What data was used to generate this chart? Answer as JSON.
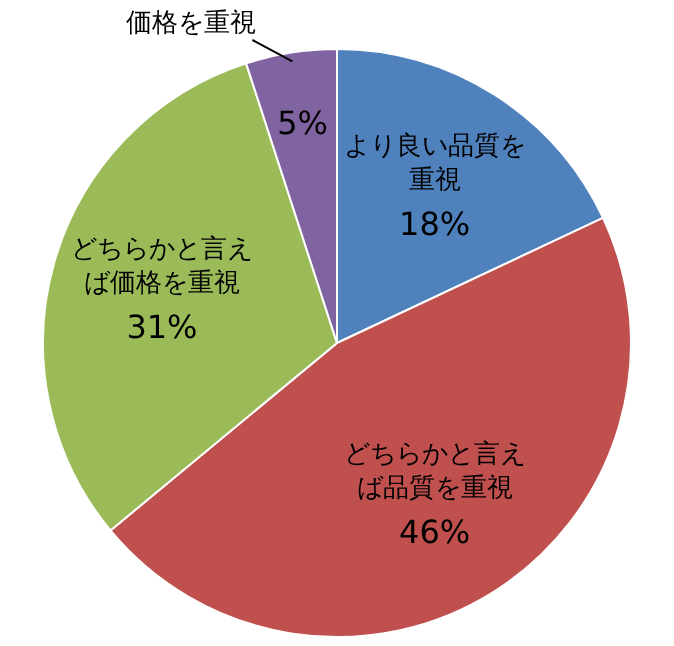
{
  "chart_data": {
    "type": "pie",
    "categories": [
      "より良い品質を重視",
      "どちらかと言えば品質を重視",
      "どちらかと言えば価格を重視",
      "価格を重視"
    ],
    "values": [
      18,
      46,
      31,
      5
    ],
    "value_labels": [
      "18%",
      "46%",
      "31%",
      "5%"
    ],
    "colors": [
      "#4f81bd",
      "#c0504d",
      "#9bbb59",
      "#8064a2"
    ],
    "legend": false
  }
}
